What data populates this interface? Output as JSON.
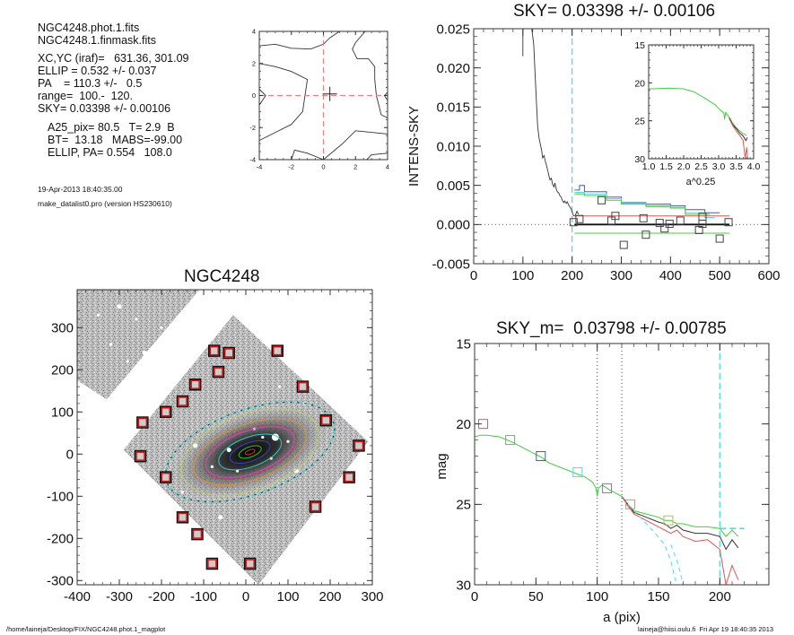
{
  "info_panel": {
    "files": [
      "NGC4248.phot.1.fits",
      "NGC4248.1.finmask.fits"
    ],
    "params": [
      "XC,YC (iraf)=   631.36, 301.09",
      "ELLIP = 0.532 +/- 0.037",
      "PA    = 110.3 +/-   0.5",
      "range=  100.-  120.",
      "SKY= 0.03398 +/- 0.00106"
    ],
    "derived": [
      "A25_pix= 80.5   T= 2.9  B",
      "BT=  13.18   MABS=-99.00",
      "ELLIP, PA= 0.554   108.0"
    ],
    "date": "19-Apr-2013 18:40:35.00",
    "program": "make_datalist0.pro (version HS230610)"
  },
  "footer": {
    "path": "/home/laineja/Desktop/FIX/NGC4248.phot.1_magplot",
    "user_time": "laineja@hiisi.oulu.fi  Fri Apr 19 18:40:35 2013"
  },
  "colors": {
    "axis": "#333333",
    "red": "#e05555",
    "green": "#44cc44",
    "blue": "#4455cc",
    "cyan": "#55dddd",
    "magenta": "#cc44cc",
    "orange": "#e09040",
    "yellowgreen": "#b8d070",
    "box_red": "#cc1111",
    "dashed_pink": "#f08080"
  },
  "chart_data": [
    {
      "id": "center-contour",
      "type": "line",
      "title": "",
      "xlabel": "",
      "ylabel": "",
      "xlim": [
        -4,
        4
      ],
      "ylim": [
        -4,
        4
      ],
      "xticks": [
        -4,
        -2,
        0,
        2,
        4
      ],
      "yticks": [
        -4,
        -2,
        0,
        2,
        4
      ],
      "xtick_labels": [
        "-4",
        "-2",
        "0",
        "2",
        "4"
      ],
      "ytick_labels": [
        "-4",
        "-2",
        "0",
        "2",
        "4"
      ],
      "crosshair_dashed": {
        "x": 0,
        "y": 0
      },
      "center_marker": {
        "x": 0.4,
        "y": 0.1
      },
      "contours": [
        [
          [
            -4,
            3.1
          ],
          [
            -3,
            3.2
          ],
          [
            -2,
            2.95
          ],
          [
            -0.8,
            2.9
          ],
          [
            0,
            3.2
          ],
          [
            0.4,
            3.6
          ],
          [
            1,
            4
          ]
        ],
        [
          [
            -4,
            2.0
          ],
          [
            -3,
            1.8
          ],
          [
            -2,
            1.5
          ],
          [
            -1,
            1.0
          ],
          [
            -1.3,
            -1.0
          ],
          [
            -2,
            -1.8
          ],
          [
            -3,
            -2.3
          ],
          [
            -4,
            -2.8
          ]
        ],
        [
          [
            -4,
            0.4
          ],
          [
            -3.6,
            0
          ],
          [
            -4,
            -0.6
          ]
        ],
        [
          [
            2.6,
            4
          ],
          [
            2.0,
            3.3
          ],
          [
            1.8,
            2.9
          ],
          [
            2.1,
            2.3
          ],
          [
            2.8,
            2.3
          ],
          [
            3.2,
            1.8
          ],
          [
            3.2,
            1.0
          ],
          [
            3.3,
            0
          ],
          [
            3.6,
            -1.2
          ],
          [
            4,
            -1.4
          ]
        ],
        [
          [
            4,
            0.2
          ],
          [
            3.8,
            0
          ],
          [
            4,
            -0.3
          ]
        ],
        [
          [
            0,
            -4
          ],
          [
            1.2,
            -3.0
          ],
          [
            2.0,
            -2.2
          ],
          [
            3.0,
            -2.3
          ],
          [
            4,
            -2.4
          ]
        ],
        [
          [
            -2,
            -4
          ],
          [
            -1.8,
            -3.4
          ],
          [
            -1.0,
            -3.6
          ],
          [
            0,
            -4
          ]
        ],
        [
          [
            2.7,
            -4
          ],
          [
            3.0,
            -3.7
          ],
          [
            4,
            -3.6
          ]
        ]
      ]
    },
    {
      "id": "intens-sky",
      "type": "line",
      "title": "SKY= 0.03398 +/- 0.00106",
      "xlabel": "",
      "ylabel": "INTENS-SKY",
      "xlim": [
        0,
        600
      ],
      "ylim": [
        -0.005,
        0.025
      ],
      "xticks": [
        0,
        100,
        200,
        300,
        400,
        500,
        600
      ],
      "yticks": [
        -0.005,
        0.0,
        0.005,
        0.01,
        0.015,
        0.02,
        0.025
      ],
      "xtick_labels": [
        "0",
        "100",
        "200",
        "300",
        "400",
        "500",
        "600"
      ],
      "ytick_labels": [
        "-0.005",
        "0.000",
        "0.005",
        "0.010",
        "0.015",
        "0.020",
        "0.025"
      ],
      "zero_line_dotted": 0.0,
      "vline_cyan_dashed": 200,
      "profile": {
        "name": "profile",
        "color": "#333333",
        "x": [
          100,
          100,
          100,
          118,
          122,
          125,
          128,
          130,
          133,
          135,
          138,
          140,
          143,
          145,
          148,
          150,
          153,
          155,
          158,
          160,
          163,
          165,
          168,
          170,
          173,
          175,
          178,
          180,
          183,
          185,
          188,
          190,
          193,
          195,
          198,
          200,
          203,
          206,
          210,
          213
        ],
        "y": [
          0.025,
          0.0215,
          0.025,
          0.025,
          0.023,
          0.019,
          0.015,
          0.0125,
          0.011,
          0.0104,
          0.0095,
          0.0085,
          0.0088,
          0.0082,
          0.0075,
          0.007,
          0.0062,
          0.0057,
          0.0059,
          0.0052,
          0.0048,
          0.0053,
          0.0045,
          0.0042,
          0.004,
          0.0037,
          0.0035,
          0.0031,
          0.0028,
          0.003,
          0.0027,
          0.0029,
          0.0025,
          0.0023,
          0.002,
          0.0016,
          0.0011,
          0.0011,
          0.0017,
          0.0013
        ]
      },
      "step_series": [
        {
          "name": "blue",
          "color": "#4455cc",
          "x": [
            205,
            215,
            215,
            225,
            225,
            270,
            270,
            300,
            300,
            350,
            350,
            400,
            400,
            430,
            430,
            470,
            470,
            500
          ],
          "y": [
            0.0044,
            0.0044,
            0.005,
            0.005,
            0.0042,
            0.0042,
            0.0035,
            0.0035,
            0.0028,
            0.0028,
            0.0026,
            0.0026,
            0.0024,
            0.0024,
            0.0019,
            0.0019,
            0.0015,
            0.0015
          ]
        },
        {
          "name": "cyan",
          "color": "#55dddd",
          "x": [
            205,
            225,
            225,
            270,
            270,
            300,
            300,
            350,
            350,
            400,
            400,
            430,
            430,
            470,
            470,
            490
          ],
          "y": [
            0.0041,
            0.0041,
            0.0039,
            0.0039,
            0.0033,
            0.0033,
            0.0027,
            0.0027,
            0.0024,
            0.0024,
            0.0022,
            0.0022,
            0.0015,
            0.0015,
            0.0009,
            0.0009
          ]
        },
        {
          "name": "green-step",
          "color": "#44cc44",
          "x": [
            205,
            225,
            225,
            270,
            270,
            300,
            300,
            350,
            350,
            400,
            400,
            430,
            430,
            480
          ],
          "y": [
            0.0039,
            0.0039,
            0.0037,
            0.0037,
            0.0031,
            0.0031,
            0.0026,
            0.0026,
            0.0023,
            0.0023,
            0.0021,
            0.0021,
            0.0013,
            0.0013
          ]
        }
      ],
      "hlines": [
        {
          "name": "red",
          "color": "#e05555",
          "y": 0.0011,
          "x0": 205,
          "x1": 520
        },
        {
          "name": "black",
          "color": "#111111",
          "y": 0.0,
          "x0": 205,
          "x1": 520
        },
        {
          "name": "green",
          "color": "#44cc44",
          "y": -0.0011,
          "x0": 205,
          "x1": 520
        }
      ],
      "squares": {
        "x": [
          203,
          215,
          260,
          280,
          288,
          345,
          350,
          378,
          388,
          398,
          420,
          458,
          465,
          465,
          500,
          518
        ],
        "y": [
          0.0003,
          0.0007,
          0.0031,
          0.0005,
          0.0011,
          0.0008,
          -0.0013,
          0.0002,
          -0.0005,
          0.0001,
          0.0005,
          -0.0007,
          0.0001,
          0.001,
          -0.0018,
          0.0003
        ]
      },
      "extra_square": {
        "x": 305,
        "y": -0.0026
      },
      "inset": {
        "xlabel": "a^0.25",
        "xlim": [
          1.0,
          4.0
        ],
        "ylim": [
          30,
          15
        ],
        "xtick_labels": [
          "1.0",
          "1.5",
          "2.0",
          "2.5",
          "3.0",
          "3.5",
          "4.0"
        ],
        "yticks": [
          15,
          20,
          25,
          30
        ],
        "ytick_labels": [
          "15",
          "20",
          "25",
          "30"
        ],
        "series": [
          {
            "name": "green",
            "color": "#44cc44",
            "x": [
              1.0,
              1.3,
              1.6,
              2.0,
              2.3,
              2.6,
              2.9,
              3.05,
              3.15,
              3.17,
              3.2,
              3.3,
              3.4,
              3.5,
              3.6,
              3.7,
              3.8
            ],
            "y": [
              20.8,
              20.75,
              20.7,
              20.8,
              21.2,
              22.0,
              22.9,
              23.6,
              24.0,
              24.8,
              23.9,
              24.5,
              25.3,
              25.9,
              26.3,
              26.7,
              26.9
            ]
          },
          {
            "name": "black",
            "color": "#333333",
            "x": [
              3.3,
              3.4,
              3.5,
              3.6,
              3.7,
              3.78,
              3.82
            ],
            "y": [
              24.6,
              25.5,
              26.0,
              26.6,
              27.0,
              27.6,
              27.2
            ]
          },
          {
            "name": "red",
            "color": "#e05555",
            "x": [
              3.3,
              3.4,
              3.5,
              3.6,
              3.7,
              3.76,
              3.8,
              3.83
            ],
            "y": [
              24.7,
              25.6,
              26.3,
              26.9,
              27.6,
              30,
              28.5,
              30
            ]
          }
        ]
      }
    },
    {
      "id": "galaxy-image",
      "type": "heatmap",
      "title": "NGC4248",
      "xlabel": "",
      "ylabel": "",
      "xlim": [
        -400,
        300
      ],
      "ylim": [
        -310,
        390
      ],
      "xticks": [
        -400,
        -300,
        -200,
        -100,
        0,
        100,
        200,
        300
      ],
      "yticks": [
        -300,
        -200,
        -100,
        0,
        100,
        200,
        300
      ],
      "xtick_labels": [
        "-400",
        "-300",
        "-200",
        "-100",
        "0",
        "100",
        "200",
        "300"
      ],
      "ytick_labels": [
        "-300",
        "-200",
        "-100",
        "0",
        "100",
        "200",
        "300"
      ],
      "ellipses": [
        {
          "color": "#cc3333",
          "a": 12,
          "b": 5
        },
        {
          "color": "#33bb33",
          "a": 28,
          "b": 12
        },
        {
          "color": "#3344bb",
          "a": 50,
          "b": 22
        },
        {
          "color": "#33cccc",
          "a": 78,
          "b": 35
        },
        {
          "color": "#cc44cc",
          "a": 110,
          "b": 50
        },
        {
          "color": "#cc3333",
          "a": 115,
          "b": 54
        },
        {
          "color": "#e09040",
          "a": 140,
          "b": 66
        },
        {
          "color": "#b8d070",
          "a": 170,
          "b": 90
        },
        {
          "color": "#55cccc",
          "a": 210,
          "b": 100
        }
      ],
      "ellipse_center": [
        10,
        5
      ],
      "ellipse_pa_deg": 20,
      "sky_boxes": [
        [
          -75,
          245
        ],
        [
          -40,
          240
        ],
        [
          -65,
          195
        ],
        [
          -120,
          165
        ],
        [
          -150,
          125
        ],
        [
          -190,
          100
        ],
        [
          -245,
          75
        ],
        [
          -250,
          -5
        ],
        [
          -190,
          -55
        ],
        [
          -150,
          -150
        ],
        [
          -115,
          -190
        ],
        [
          -80,
          -260
        ],
        [
          10,
          -260
        ],
        [
          165,
          -125
        ],
        [
          245,
          -55
        ],
        [
          268,
          20
        ],
        [
          190,
          80
        ],
        [
          135,
          160
        ],
        [
          75,
          245
        ]
      ]
    },
    {
      "id": "mag-profile",
      "type": "line",
      "title": "SKY_m=  0.03798 +/- 0.00785",
      "xlabel": "a (pix)",
      "ylabel": "mag",
      "xlim": [
        0,
        240
      ],
      "ylim": [
        30,
        15
      ],
      "xticks": [
        0,
        50,
        100,
        150,
        200
      ],
      "yticks": [
        15,
        20,
        25,
        30
      ],
      "xtick_labels": [
        "0",
        "50",
        "100",
        "150",
        "200"
      ],
      "ytick_labels": [
        "15",
        "20",
        "25",
        "30"
      ],
      "vlines_dotted": [
        100,
        120
      ],
      "vline_cyan_dashed": 200,
      "hline_cyan_dashed": {
        "y": 26.5,
        "x0": 200,
        "x1": 220
      },
      "series": [
        {
          "name": "green",
          "color": "#44cc44",
          "x": [
            0,
            5,
            10,
            20,
            30,
            40,
            50,
            55,
            60,
            70,
            80,
            90,
            96,
            99,
            100,
            101,
            104,
            110,
            120,
            125,
            130,
            140,
            150,
            155,
            160,
            165,
            170,
            180,
            190,
            200,
            205,
            210,
            215
          ],
          "y": [
            20.8,
            20.7,
            20.7,
            20.8,
            21.1,
            21.5,
            21.9,
            22.1,
            22.4,
            22.7,
            23.0,
            23.3,
            23.6,
            24.0,
            24.5,
            24.0,
            23.8,
            24.1,
            24.5,
            25.0,
            25.4,
            25.6,
            25.8,
            26.0,
            26.0,
            26.2,
            26.2,
            26.4,
            26.4,
            26.5,
            27.0,
            26.6,
            27.0
          ]
        },
        {
          "name": "black",
          "color": "#333333",
          "x": [
            120,
            125,
            130,
            140,
            150,
            155,
            160,
            165,
            170,
            180,
            190,
            200,
            205,
            210,
            215
          ],
          "y": [
            24.5,
            25.0,
            25.5,
            25.8,
            26.1,
            26.2,
            26.5,
            26.3,
            26.6,
            26.8,
            26.8,
            27.0,
            27.8,
            27.2,
            27.7
          ]
        },
        {
          "name": "red",
          "color": "#e05555",
          "x": [
            120,
            125,
            130,
            140,
            150,
            155,
            160,
            165,
            170,
            180,
            190,
            200,
            205,
            210,
            215
          ],
          "y": [
            24.5,
            25.1,
            25.6,
            26.0,
            26.4,
            26.6,
            26.8,
            26.6,
            27.0,
            27.3,
            27.2,
            27.8,
            30,
            28.8,
            29.7
          ]
        },
        {
          "name": "cyan-dashed-1",
          "color": "#55dddd",
          "dashed": true,
          "x": [
            125,
            135,
            145,
            155,
            160,
            163,
            165
          ],
          "y": [
            25.0,
            25.8,
            26.6,
            27.5,
            28.5,
            29.5,
            30
          ]
        },
        {
          "name": "cyan-dashed-2",
          "color": "#55dddd",
          "dashed": true,
          "x": [
            160,
            165,
            168,
            170
          ],
          "y": [
            27.5,
            28.5,
            29.3,
            30
          ]
        }
      ],
      "squares": [
        {
          "x": 7,
          "y": 20.0,
          "color": "#e05555"
        },
        {
          "x": 29,
          "y": 21.0,
          "color": "#44cc44"
        },
        {
          "x": 54,
          "y": 22.0,
          "color": "#4455cc"
        },
        {
          "x": 84,
          "y": 23.0,
          "color": "#55dddd"
        },
        {
          "x": 108,
          "y": 24.0,
          "color": "#cc44cc"
        },
        {
          "x": 127,
          "y": 25.0,
          "color": "#e09040"
        },
        {
          "x": 158,
          "y": 26.0,
          "color": "#c8b840"
        }
      ]
    }
  ]
}
